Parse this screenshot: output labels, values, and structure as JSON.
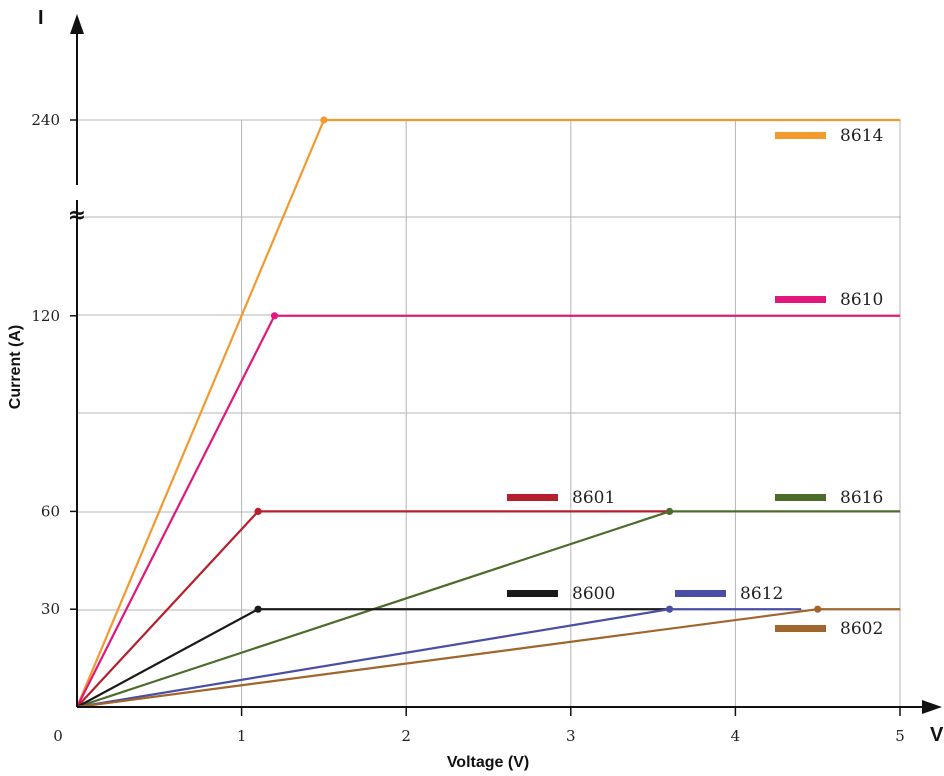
{
  "chart_data": {
    "type": "line",
    "xlabel": "Voltage (V)",
    "ylabel": "Current (A)",
    "x_axis_letter": "V",
    "y_axis_letter": "I",
    "xlim": [
      0,
      5
    ],
    "x_ticks": [
      0,
      1,
      2,
      3,
      4,
      5
    ],
    "x_tick_labels": [
      "0",
      "1",
      "2",
      "3",
      "4",
      "5"
    ],
    "y_ticks": [
      30,
      60,
      120,
      240
    ],
    "y_tick_labels": [
      "30",
      "60",
      "120",
      "240"
    ],
    "axis_break_symbol": "≈",
    "grid": true,
    "series": [
      {
        "name": "8614",
        "color": "#F29A2E",
        "x": [
          0,
          1.5,
          5
        ],
        "y": [
          0,
          240,
          240
        ],
        "knee": [
          1.5,
          240
        ]
      },
      {
        "name": "8610",
        "color": "#E2177C",
        "x": [
          0,
          1.2,
          5
        ],
        "y": [
          0,
          120,
          120
        ],
        "knee": [
          1.2,
          120
        ]
      },
      {
        "name": "8601",
        "color": "#B51F2E",
        "x": [
          0,
          1.1,
          3.6
        ],
        "y": [
          0,
          60,
          60
        ],
        "knee": [
          1.1,
          60
        ]
      },
      {
        "name": "8616",
        "color": "#4D6B2A",
        "x": [
          0,
          3.6,
          5
        ],
        "y": [
          0,
          60,
          60
        ],
        "knee": [
          3.6,
          60
        ]
      },
      {
        "name": "8600",
        "color": "#1A1A1A",
        "x": [
          0,
          1.1,
          3.6
        ],
        "y": [
          0,
          30,
          30
        ],
        "knee": [
          1.1,
          30
        ]
      },
      {
        "name": "8612",
        "color": "#4A4FA5",
        "x": [
          0,
          3.6,
          4.4
        ],
        "y": [
          0,
          30,
          30
        ],
        "knee": [
          3.6,
          30
        ]
      },
      {
        "name": "8602",
        "color": "#A0652A",
        "x": [
          0,
          4.5,
          5
        ],
        "y": [
          0,
          30,
          30
        ],
        "knee": [
          4.5,
          30
        ]
      }
    ]
  }
}
